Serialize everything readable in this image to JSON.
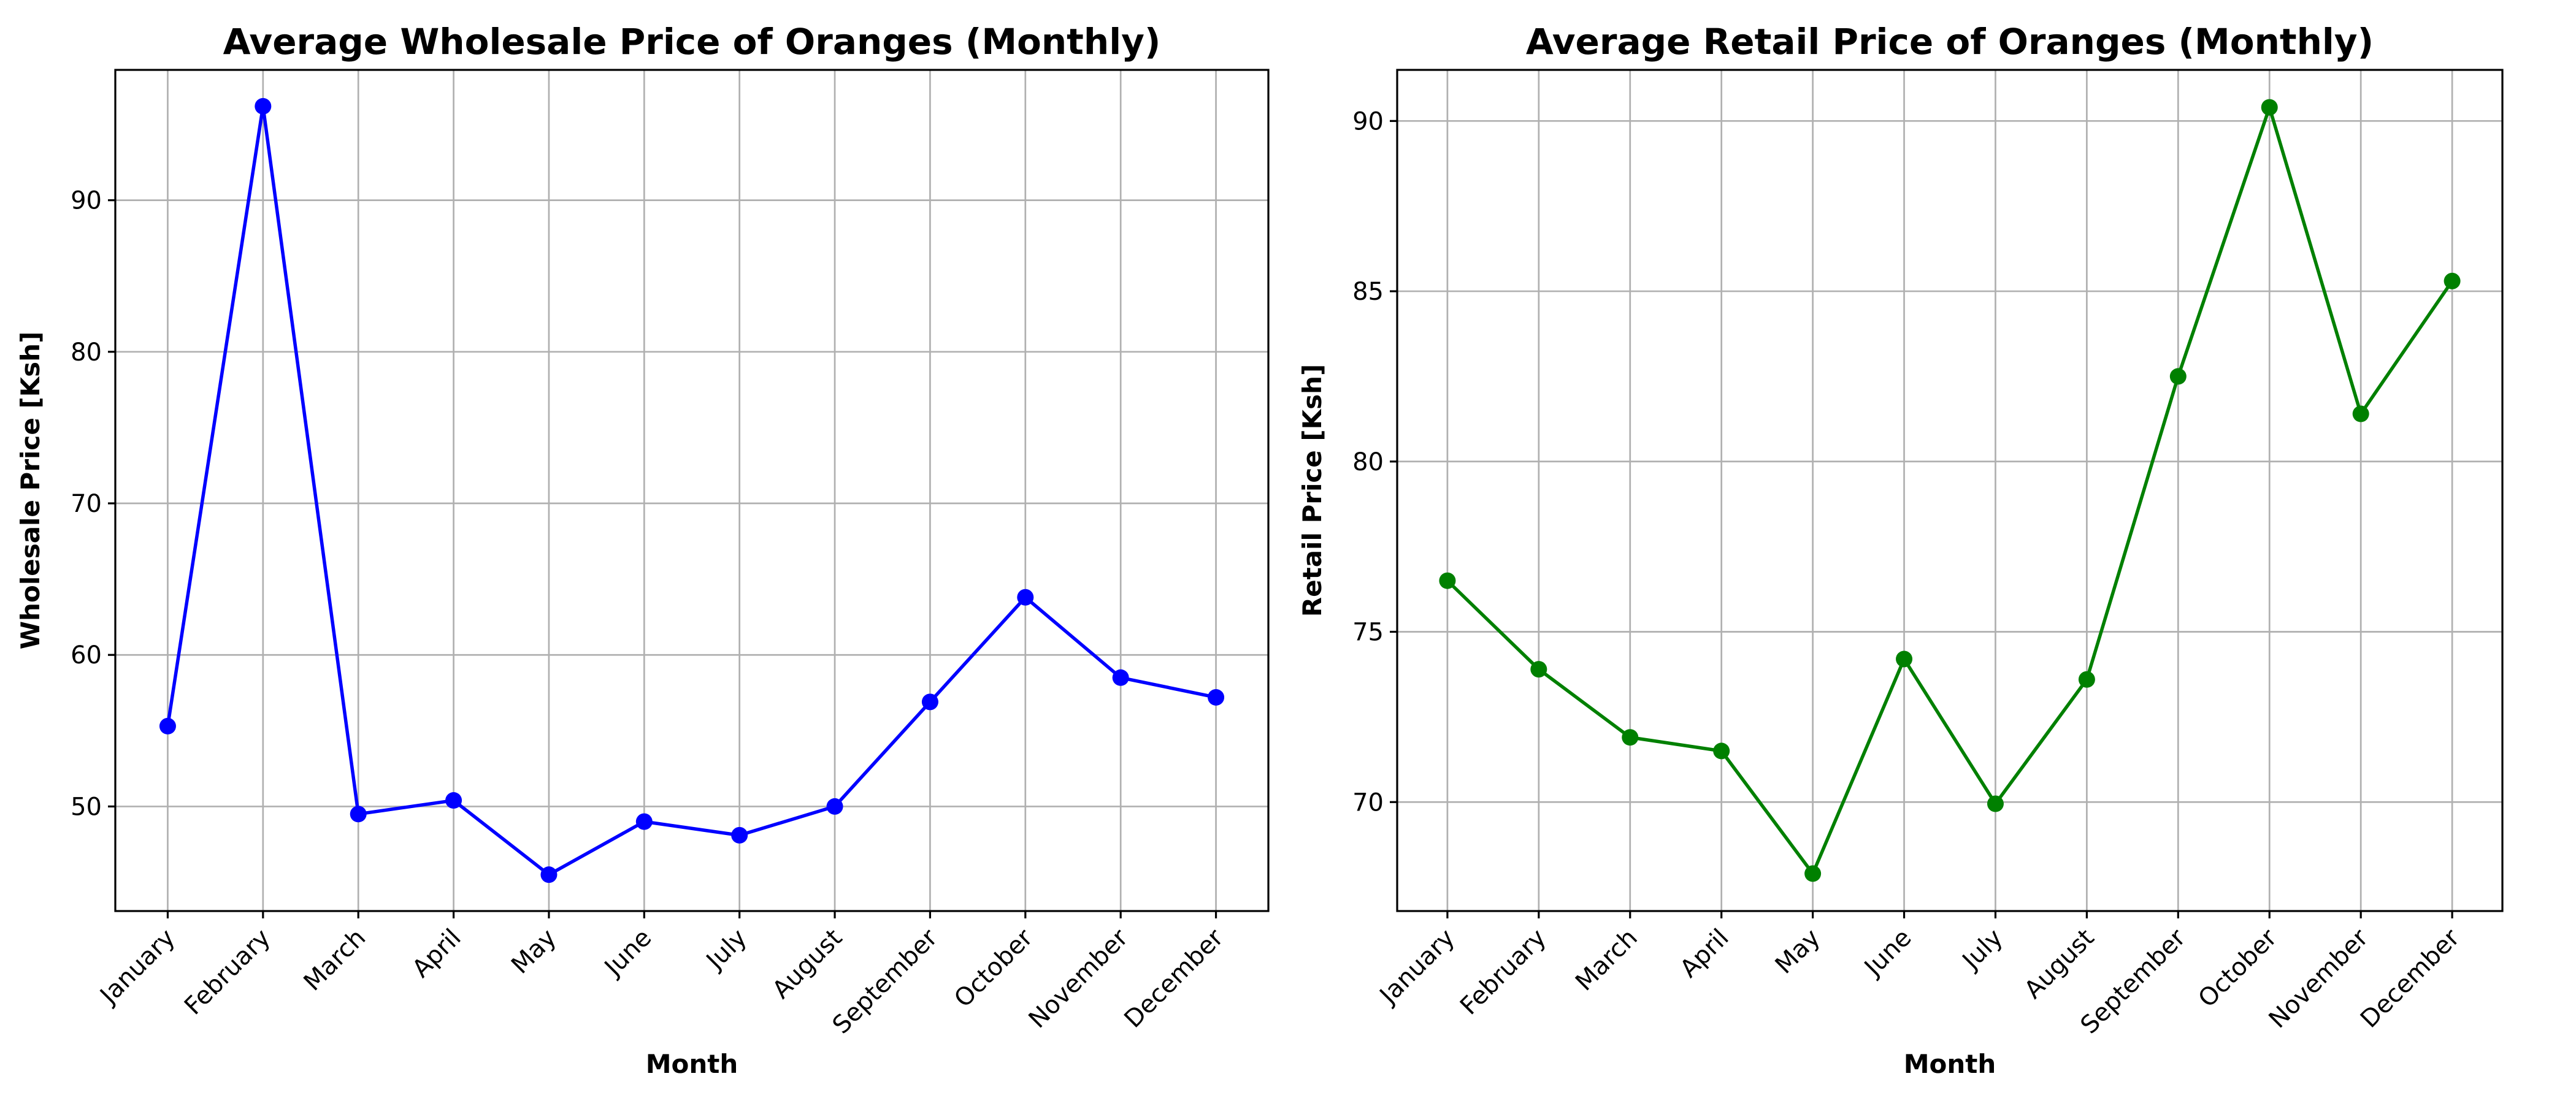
{
  "chart_data": [
    {
      "type": "line",
      "title": "Average Wholesale Price of Oranges (Monthly)",
      "xlabel": "Month",
      "ylabel": "Wholesale Price [Ksh]",
      "categories": [
        "January",
        "February",
        "March",
        "April",
        "May",
        "June",
        "July",
        "August",
        "September",
        "October",
        "November",
        "December"
      ],
      "series": [
        {
          "values": [
            55.3,
            96.2,
            49.5,
            50.4,
            45.5,
            49.0,
            48.1,
            50.0,
            56.9,
            63.8,
            58.5,
            57.2
          ],
          "color": "#0000ff",
          "marker": "circle"
        }
      ],
      "ylim": [
        43.1,
        98.6
      ],
      "yticks": [
        50,
        60,
        70,
        80,
        90
      ],
      "grid": true
    },
    {
      "type": "line",
      "title": "Average Retail Price of Oranges (Monthly)",
      "xlabel": "Month",
      "ylabel": "Retail Price [Ksh]",
      "categories": [
        "January",
        "February",
        "March",
        "April",
        "May",
        "June",
        "July",
        "August",
        "September",
        "October",
        "November",
        "December"
      ],
      "series": [
        {
          "values": [
            76.5,
            73.9,
            71.9,
            71.5,
            67.9,
            74.2,
            69.95,
            73.6,
            82.5,
            90.4,
            81.4,
            85.3
          ],
          "color": "#008000",
          "marker": "circle"
        }
      ],
      "ylim": [
        66.8,
        91.5
      ],
      "yticks": [
        70,
        75,
        80,
        85,
        90
      ],
      "grid": true
    }
  ]
}
